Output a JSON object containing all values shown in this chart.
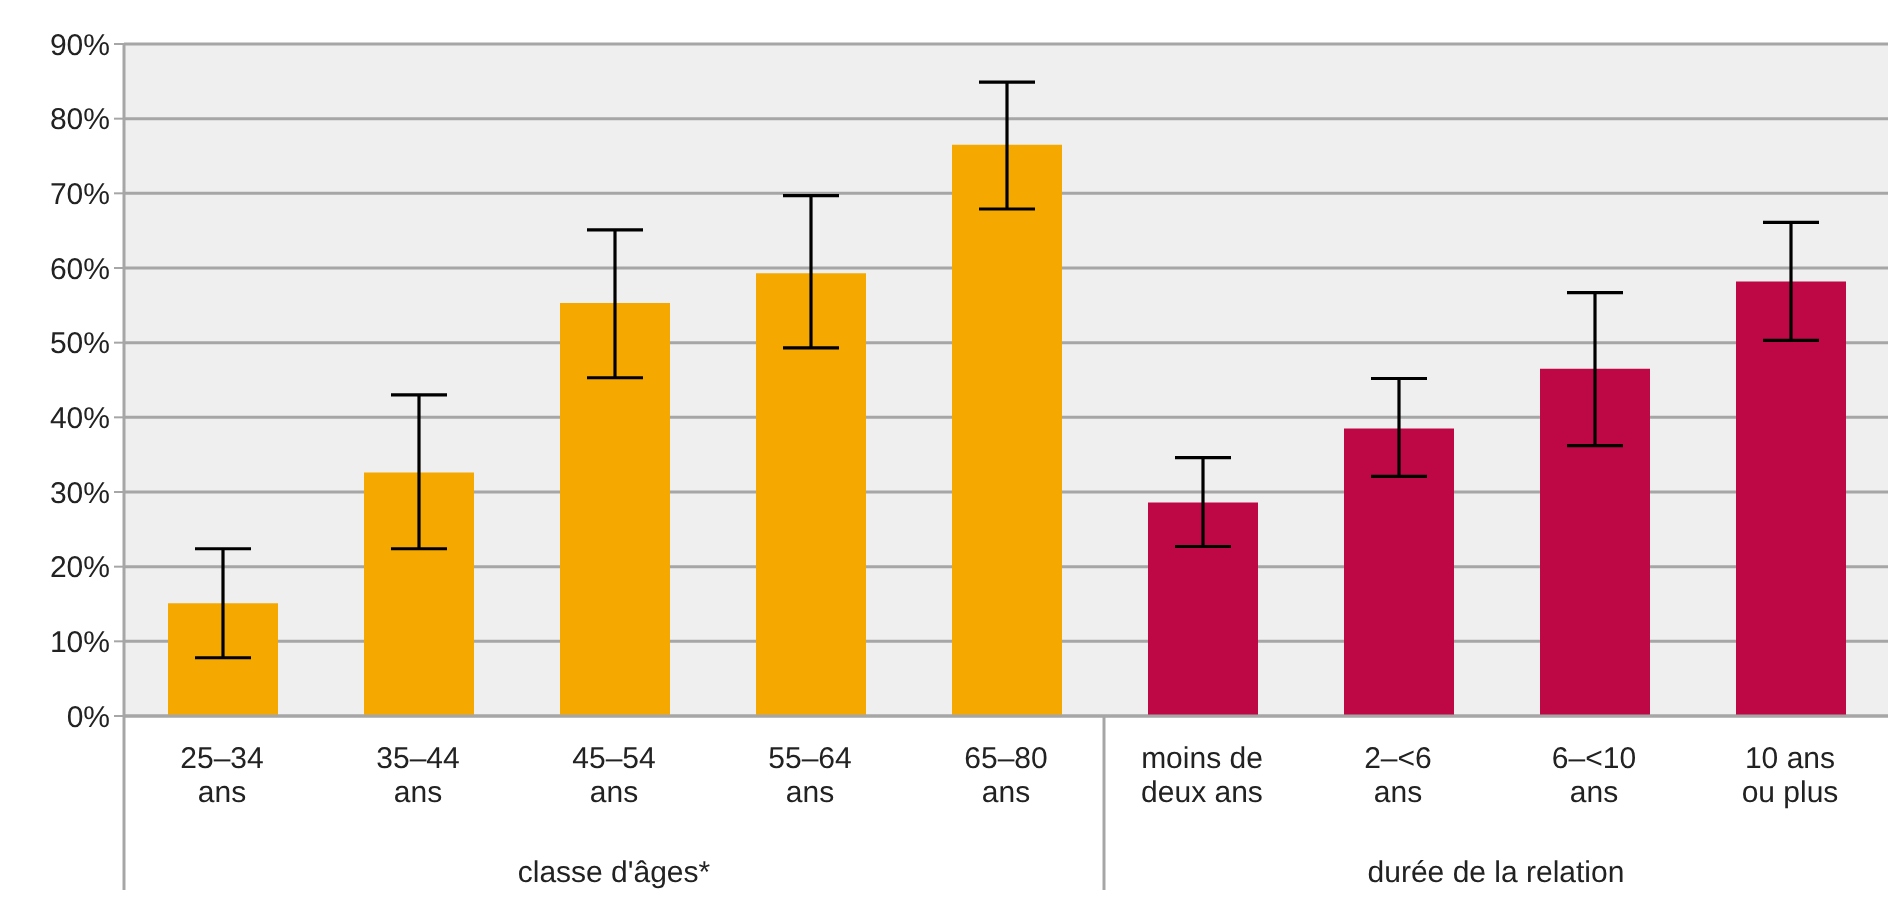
{
  "chart_data": {
    "type": "bar",
    "categories": [
      "25–34\nans",
      "35–44\nans",
      "45–54\nans",
      "55–64\nans",
      "65–80\nans",
      "moins de\ndeux ans",
      "2–<6\nans",
      "6–<10\nans",
      "10 ans\nou plus"
    ],
    "values": [
      15.1,
      32.6,
      55.3,
      59.3,
      76.5,
      28.6,
      38.5,
      46.5,
      58.2
    ],
    "errors": [
      [
        7.8,
        22.4
      ],
      [
        22.4,
        43.0
      ],
      [
        45.3,
        65.1
      ],
      [
        49.3,
        69.7
      ],
      [
        67.9,
        84.9
      ],
      [
        22.7,
        34.6
      ],
      [
        32.1,
        45.2
      ],
      [
        36.2,
        56.7
      ],
      [
        50.3,
        66.1
      ]
    ],
    "colors": [
      "#f5a800",
      "#f5a800",
      "#f5a800",
      "#f5a800",
      "#f5a800",
      "#be0846",
      "#be0846",
      "#be0846",
      "#be0846"
    ],
    "ylim": [
      0,
      90
    ],
    "yticks": [
      {
        "value": 0,
        "label": "0%"
      },
      {
        "value": 10,
        "label": "10%"
      },
      {
        "value": 20,
        "label": "20%"
      },
      {
        "value": 30,
        "label": "30%"
      },
      {
        "value": 40,
        "label": "40%"
      },
      {
        "value": 50,
        "label": "50%"
      },
      {
        "value": 60,
        "label": "60%"
      },
      {
        "value": 70,
        "label": "70%"
      },
      {
        "value": 80,
        "label": "80%"
      },
      {
        "value": 90,
        "label": "90%"
      }
    ],
    "grid": "y",
    "legend": false,
    "annotations": [
      "classe d'âges*",
      "durée de la relation"
    ]
  }
}
